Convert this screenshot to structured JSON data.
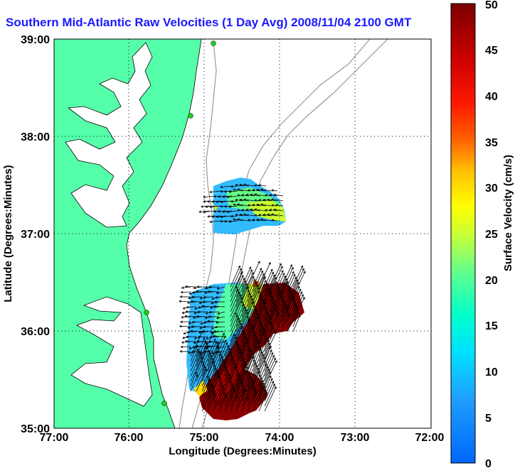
{
  "title": "Southern Mid-Atlantic Raw Velocities (1 Day Avg) 2008/11/04 2100 GMT",
  "map": {
    "xlabel": "Longitude (Degrees:Minutes)",
    "ylabel": "Latitude (Degrees:Minutes)",
    "lon_ticks": [
      "77:00",
      "76:00",
      "75:00",
      "74:00",
      "73:00",
      "72:00"
    ],
    "lat_ticks": [
      "39:00",
      "38:00",
      "37:00",
      "36:00",
      "35:00"
    ],
    "lon_range": [
      -77,
      -72
    ],
    "lat_range": [
      35,
      39
    ],
    "land_color": "#55ffaa",
    "grid": "dotted"
  },
  "colorbar": {
    "label": "Surface Velocity (cm/s)",
    "ticks": [
      "0",
      "5",
      "10",
      "15",
      "20",
      "25",
      "30",
      "35",
      "40",
      "45",
      "50"
    ],
    "range": [
      0,
      50
    ]
  }
}
